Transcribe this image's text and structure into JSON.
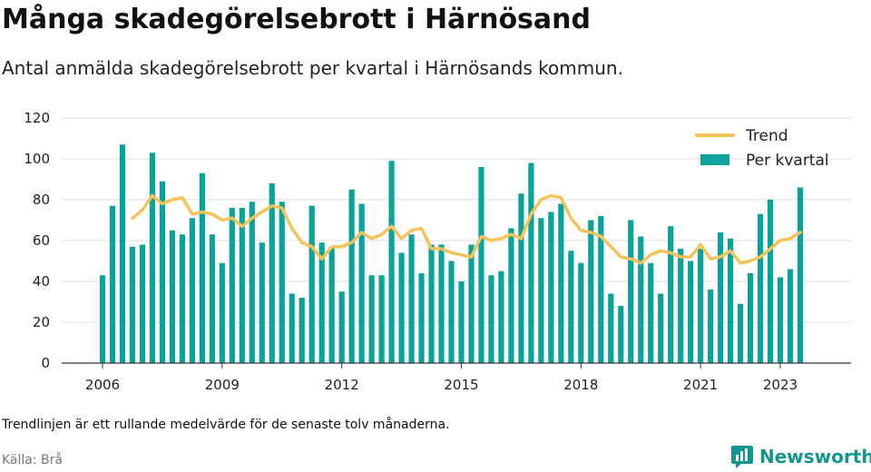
{
  "title": "Många skadegörelsebrott i Härnösand",
  "subtitle": "Antal anmälda skadegörelsebrott per kvartal i Härnösands kommun.",
  "note": "Trendlinjen är ett rullande medelvärde för de senaste tolv månaderna.",
  "source": "Källa: Brå",
  "brand": "Newsworthy",
  "colors": {
    "bar": "#0aa39b",
    "trend": "#f6c25a",
    "grid": "#dddddd",
    "axis": "#333333",
    "brand": "#139591"
  },
  "chart_data": {
    "type": "bar",
    "x_start": "2006 Q1",
    "categories": [
      "2006 Q1",
      "2006 Q2",
      "2006 Q3",
      "2006 Q4",
      "2007 Q1",
      "2007 Q2",
      "2007 Q3",
      "2007 Q4",
      "2008 Q1",
      "2008 Q2",
      "2008 Q3",
      "2008 Q4",
      "2009 Q1",
      "2009 Q2",
      "2009 Q3",
      "2009 Q4",
      "2010 Q1",
      "2010 Q2",
      "2010 Q3",
      "2010 Q4",
      "2011 Q1",
      "2011 Q2",
      "2011 Q3",
      "2011 Q4",
      "2012 Q1",
      "2012 Q2",
      "2012 Q3",
      "2012 Q4",
      "2013 Q1",
      "2013 Q2",
      "2013 Q3",
      "2013 Q4",
      "2014 Q1",
      "2014 Q2",
      "2014 Q3",
      "2014 Q4",
      "2015 Q1",
      "2015 Q2",
      "2015 Q3",
      "2015 Q4",
      "2016 Q1",
      "2016 Q2",
      "2016 Q3",
      "2016 Q4",
      "2017 Q1",
      "2017 Q2",
      "2017 Q3",
      "2017 Q4",
      "2018 Q1",
      "2018 Q2",
      "2018 Q3",
      "2018 Q4",
      "2019 Q1",
      "2019 Q2",
      "2019 Q3",
      "2019 Q4",
      "2020 Q1",
      "2020 Q2",
      "2020 Q3",
      "2020 Q4",
      "2021 Q1",
      "2021 Q2",
      "2021 Q3",
      "2021 Q4",
      "2022 Q1",
      "2022 Q2",
      "2022 Q3",
      "2022 Q4",
      "2023 Q1",
      "2023 Q2",
      "2023 Q3",
      "2023 Q4"
    ],
    "series": [
      {
        "name": "Per kvartal",
        "type": "bar",
        "values": [
          43,
          77,
          107,
          57,
          58,
          103,
          89,
          65,
          63,
          71,
          93,
          63,
          49,
          76,
          76,
          79,
          59,
          88,
          79,
          34,
          32,
          77,
          59,
          57,
          35,
          85,
          78,
          43,
          43,
          99,
          54,
          63,
          44,
          58,
          58,
          50,
          40,
          58,
          96,
          43,
          45,
          66,
          83,
          98,
          71,
          74,
          78,
          55,
          49,
          70,
          72,
          34,
          28,
          70,
          62,
          49,
          34,
          67,
          56,
          50,
          56,
          36,
          64,
          61,
          29,
          44,
          73,
          80,
          42,
          46,
          86,
          null
        ]
      },
      {
        "name": "Trend",
        "type": "line",
        "values": [
          null,
          null,
          null,
          71,
          75,
          82,
          78,
          80,
          81,
          73,
          74,
          73,
          70,
          71,
          67,
          71,
          74,
          77,
          76,
          66,
          59,
          57,
          51,
          57,
          57,
          59,
          64,
          61,
          63,
          67,
          61,
          65,
          66,
          56,
          56,
          54,
          53,
          52,
          62,
          60,
          61,
          63,
          61,
          73,
          80,
          82,
          81,
          71,
          65,
          64,
          62,
          57,
          52,
          51,
          49,
          53,
          55,
          54,
          52,
          52,
          58,
          51,
          52,
          55,
          49,
          50,
          52,
          56,
          60,
          61,
          64,
          null
        ]
      }
    ],
    "x_ticks": [
      "2006",
      "2009",
      "2012",
      "2015",
      "2018",
      "2021",
      "2023"
    ],
    "y_ticks": [
      0,
      20,
      40,
      60,
      80,
      100,
      120
    ],
    "ylim": [
      0,
      120
    ],
    "grid": true,
    "legend_position": "top-right"
  }
}
